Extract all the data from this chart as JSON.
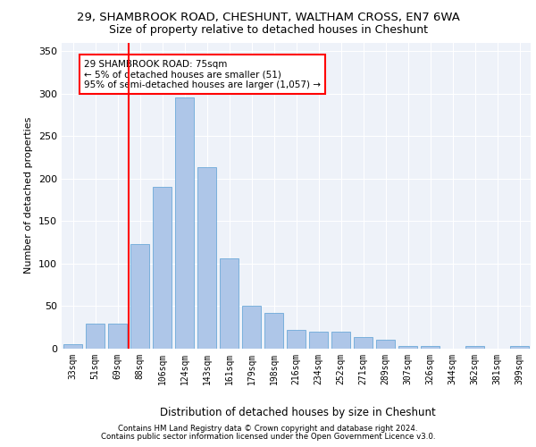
{
  "title1": "29, SHAMBROOK ROAD, CHESHUNT, WALTHAM CROSS, EN7 6WA",
  "title2": "Size of property relative to detached houses in Cheshunt",
  "xlabel": "Distribution of detached houses by size in Cheshunt",
  "ylabel": "Number of detached properties",
  "categories": [
    "33sqm",
    "51sqm",
    "69sqm",
    "88sqm",
    "106sqm",
    "124sqm",
    "143sqm",
    "161sqm",
    "179sqm",
    "198sqm",
    "216sqm",
    "234sqm",
    "252sqm",
    "271sqm",
    "289sqm",
    "307sqm",
    "326sqm",
    "344sqm",
    "362sqm",
    "381sqm",
    "399sqm"
  ],
  "values": [
    5,
    29,
    29,
    123,
    190,
    295,
    213,
    106,
    50,
    42,
    22,
    20,
    20,
    14,
    10,
    3,
    3,
    0,
    3,
    0,
    3
  ],
  "bar_color": "#aec6e8",
  "bar_edge_color": "#5a9fd4",
  "vline_index": 2,
  "vline_color": "red",
  "annotation_text": "29 SHAMBROOK ROAD: 75sqm\n← 5% of detached houses are smaller (51)\n95% of semi-detached houses are larger (1,057) →",
  "annotation_box_color": "white",
  "annotation_box_edge": "red",
  "ylim": [
    0,
    360
  ],
  "yticks": [
    0,
    50,
    100,
    150,
    200,
    250,
    300,
    350
  ],
  "footer1": "Contains HM Land Registry data © Crown copyright and database right 2024.",
  "footer2": "Contains public sector information licensed under the Open Government Licence v3.0.",
  "bg_color": "#eef2f9",
  "title1_fontsize": 9.5,
  "title2_fontsize": 9,
  "xlabel_fontsize": 8.5,
  "ylabel_fontsize": 8,
  "footer_fontsize": 6.2
}
